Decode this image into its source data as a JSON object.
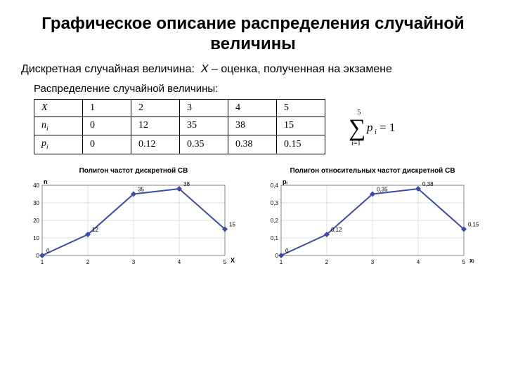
{
  "title": "Графическое описание распределения случайной величины",
  "subtitle_prefix": "Дискретная случайная величина:",
  "subtitle_var": "X",
  "subtitle_desc": " – оценка, полученная на экзамене",
  "dist_label": "Распределение случайной величины:",
  "table": {
    "headers": [
      "X",
      "nᵢ",
      "pᵢ"
    ],
    "row_x": [
      "1",
      "2",
      "3",
      "4",
      "5"
    ],
    "row_n": [
      "0",
      "12",
      "35",
      "38",
      "15"
    ],
    "row_p": [
      "0",
      "0.12",
      "0.35",
      "0.38",
      "0.15"
    ]
  },
  "formula": {
    "sum_upper": "5",
    "sum_lower": "i=1",
    "body": "pᵢ = 1"
  },
  "chart1": {
    "title": "Полигон частот дискретной СВ",
    "yaxis_label": "n",
    "xaxis_label": "X",
    "x": [
      1,
      2,
      3,
      4,
      5
    ],
    "y": [
      0,
      12,
      35,
      38,
      15
    ],
    "labels": [
      "0",
      "12",
      "35",
      "38",
      "15"
    ],
    "ylim": [
      0,
      40
    ],
    "yticks": [
      0,
      10,
      20,
      30,
      40
    ],
    "line_color": "#3b4ba8",
    "marker_color": "#3b4ba8",
    "grid_color": "#c0c0c0",
    "bg_color": "#ffffff",
    "font_size": 8
  },
  "chart2": {
    "title": "Полигон относительных частот дискретной СВ",
    "yaxis_label": "pᵢ",
    "xaxis_label": "xᵢ",
    "x": [
      1,
      2,
      3,
      4,
      5
    ],
    "y": [
      0,
      0.12,
      0.35,
      0.38,
      0.15
    ],
    "labels": [
      "0",
      "0,12",
      "0,35",
      "0,38",
      "0,15"
    ],
    "ylim": [
      0,
      0.4
    ],
    "yticks": [
      0,
      0.1,
      0.2,
      0.3,
      0.4
    ],
    "ytick_labels": [
      "0",
      "0,1",
      "0,2",
      "0,3",
      "0,4"
    ],
    "line_color": "#3b4ba8",
    "marker_color": "#3b4ba8",
    "grid_color": "#c0c0c0",
    "bg_color": "#ffffff",
    "font_size": 8
  }
}
